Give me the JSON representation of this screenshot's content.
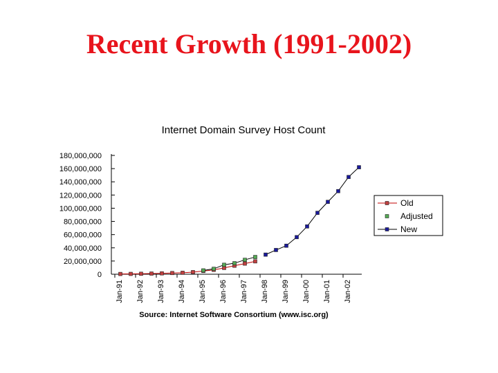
{
  "slide": {
    "title": "Recent Growth (1991-2002)"
  },
  "chart_data": {
    "type": "line",
    "title": "Internet Domain Survey Host Count",
    "source": "Source: Internet Software Consortium (www.isc.org)",
    "xlabel": "",
    "ylabel": "",
    "y_tick_labels": [
      "0",
      "20,000,000",
      "40,000,000",
      "60,000,000",
      "80,000,000",
      "100,000,000",
      "120,000,000",
      "140,000,000",
      "160,000,000",
      "180,000,000"
    ],
    "ylim": [
      0,
      180000000
    ],
    "x_tick_labels": [
      "Jan-91",
      "Jan-92",
      "Jan-93",
      "Jan-94",
      "Jan-95",
      "Jan-96",
      "Jan-97",
      "Jan-98",
      "Jan-99",
      "Jan-00",
      "Jan-01",
      "Jan-02"
    ],
    "x_range": [
      1991,
      2002
    ],
    "grid": false,
    "legend_position": "right",
    "series": [
      {
        "name": "Old",
        "marker": "square",
        "color": "#c00000",
        "marker_fill": "#c04040",
        "points": [
          [
            1991.0,
            400000
          ],
          [
            1991.5,
            500000
          ],
          [
            1992.0,
            700000
          ],
          [
            1992.5,
            1000000
          ],
          [
            1993.0,
            1300000
          ],
          [
            1993.5,
            1800000
          ],
          [
            1994.0,
            2200000
          ],
          [
            1994.5,
            3200000
          ],
          [
            1995.0,
            4900000
          ],
          [
            1995.5,
            6600000
          ],
          [
            1996.0,
            9500000
          ],
          [
            1996.5,
            12900000
          ],
          [
            1997.0,
            16100000
          ],
          [
            1997.5,
            19500000
          ]
        ]
      },
      {
        "name": "Adjusted",
        "marker": "square",
        "color": "#000000",
        "marker_fill": "#55aa55",
        "points": [
          [
            1995.0,
            5800000
          ],
          [
            1995.5,
            8200000
          ],
          [
            1996.0,
            14300000
          ],
          [
            1996.5,
            16700000
          ],
          [
            1997.0,
            21800000
          ],
          [
            1997.5,
            26100000
          ]
        ]
      },
      {
        "name": "New",
        "marker": "square",
        "color": "#000000",
        "marker_fill": "#1a1a9a",
        "points": [
          [
            1998.0,
            29700000
          ],
          [
            1998.5,
            36700000
          ],
          [
            1999.0,
            43200000
          ],
          [
            1999.5,
            56200000
          ],
          [
            2000.0,
            72400000
          ],
          [
            2000.5,
            93000000
          ],
          [
            2001.0,
            109600000
          ],
          [
            2001.5,
            125900000
          ],
          [
            2002.0,
            147300000
          ],
          [
            2002.5,
            162100000
          ]
        ]
      }
    ]
  }
}
